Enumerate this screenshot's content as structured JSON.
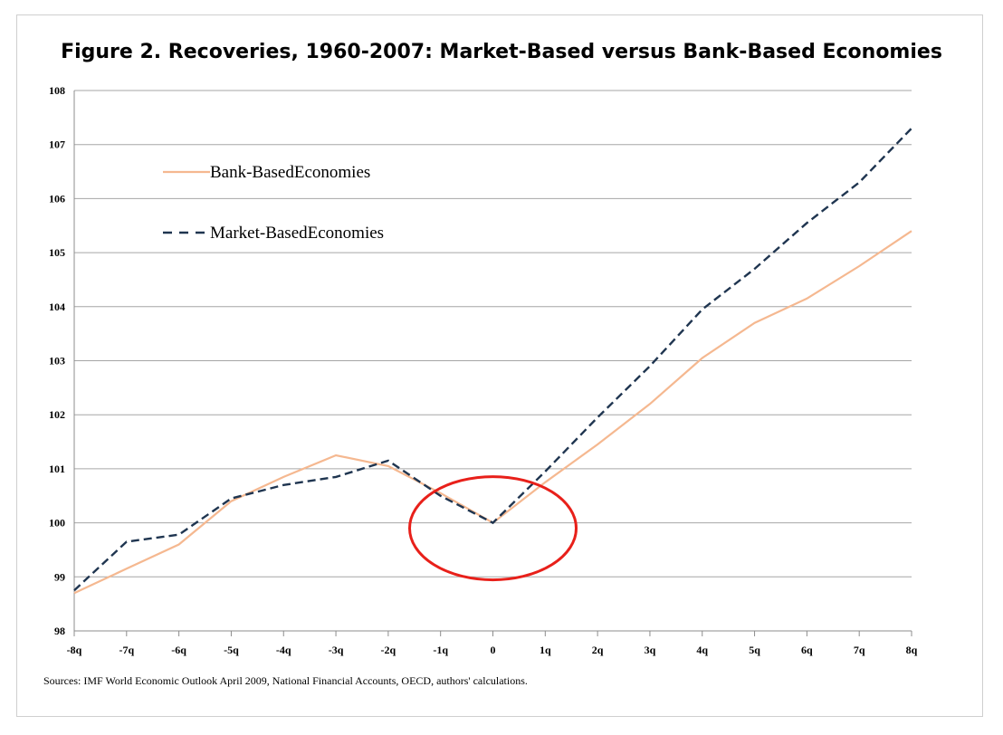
{
  "chart_data": {
    "type": "line",
    "title": "Figure 2. Recoveries, 1960-2007: Market-Based versus Bank-Based Economies",
    "source": "Sources:  IMF World Economic Outlook April 2009, National Financial Accounts, OECD, authors' calculations.",
    "categories": [
      "-8q",
      "-7q",
      "-6q",
      "-5q",
      "-4q",
      "-3q",
      "-2q",
      "-1q",
      "0",
      "1q",
      "2q",
      "3q",
      "4q",
      "5q",
      "6q",
      "7q",
      "8q"
    ],
    "y_ticks": [
      "98",
      "99",
      "100",
      "101",
      "102",
      "103",
      "104",
      "105",
      "106",
      "107",
      "108"
    ],
    "ylim": [
      98,
      108
    ],
    "grid": true,
    "legend_position": "top-left",
    "series": [
      {
        "name": "Bank-BasedEconomies",
        "color": "#f5b890",
        "dash": "solid",
        "values": [
          98.7,
          99.15,
          99.6,
          100.4,
          100.85,
          101.25,
          101.05,
          100.55,
          100.0,
          100.75,
          101.45,
          102.2,
          103.05,
          103.7,
          104.15,
          104.75,
          105.4
        ]
      },
      {
        "name": "Market-BasedEconomies",
        "color": "#1f3550",
        "dash": "dashed",
        "values": [
          98.75,
          99.65,
          99.78,
          100.45,
          100.7,
          100.85,
          101.15,
          100.5,
          100.0,
          100.95,
          101.95,
          102.9,
          103.95,
          104.7,
          105.55,
          106.3,
          107.3
        ]
      }
    ],
    "annotation": {
      "type": "circle",
      "color": "#e8201a",
      "at_category": "0",
      "at_value": 99.9
    }
  }
}
